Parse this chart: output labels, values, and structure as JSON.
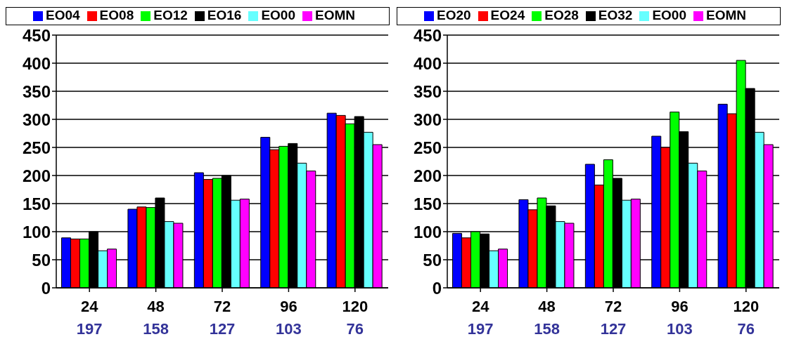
{
  "chart_data": [
    {
      "type": "bar",
      "categories": [
        "24",
        "48",
        "72",
        "96",
        "120"
      ],
      "ylim": [
        0,
        450
      ],
      "yticks": [
        0,
        50,
        100,
        150,
        200,
        250,
        300,
        350,
        400,
        450
      ],
      "grid": "y",
      "legend": "top",
      "series": [
        {
          "name": "EO04",
          "color": "#0000ff",
          "values": [
            89,
            140,
            205,
            268,
            311
          ]
        },
        {
          "name": "EO08",
          "color": "#ff0000",
          "values": [
            87,
            144,
            193,
            246,
            307
          ]
        },
        {
          "name": "EO12",
          "color": "#00ff00",
          "values": [
            87,
            143,
            195,
            252,
            292
          ]
        },
        {
          "name": "EO16",
          "color": "#000000",
          "values": [
            100,
            160,
            200,
            257,
            305
          ]
        },
        {
          "name": "EO00",
          "color": "#66ffff",
          "values": [
            66,
            118,
            156,
            222,
            277
          ]
        },
        {
          "name": "EOMN",
          "color": "#ff00ff",
          "values": [
            69,
            115,
            158,
            208,
            255
          ]
        }
      ],
      "annotations": [
        "197",
        "158",
        "127",
        "103",
        "76"
      ]
    },
    {
      "type": "bar",
      "categories": [
        "24",
        "48",
        "72",
        "96",
        "120"
      ],
      "ylim": [
        0,
        450
      ],
      "yticks": [
        0,
        50,
        100,
        150,
        200,
        250,
        300,
        350,
        400,
        450
      ],
      "grid": "y",
      "legend": "top",
      "series": [
        {
          "name": "EO20",
          "color": "#0000ff",
          "values": [
            97,
            157,
            220,
            270,
            327
          ]
        },
        {
          "name": "EO24",
          "color": "#ff0000",
          "values": [
            89,
            139,
            183,
            250,
            310
          ]
        },
        {
          "name": "EO28",
          "color": "#00ff00",
          "values": [
            100,
            160,
            228,
            313,
            405
          ]
        },
        {
          "name": "EO32",
          "color": "#000000",
          "values": [
            96,
            146,
            195,
            278,
            355
          ]
        },
        {
          "name": "EO00",
          "color": "#66ffff",
          "values": [
            66,
            118,
            156,
            222,
            277
          ]
        },
        {
          "name": "EOMN",
          "color": "#ff00ff",
          "values": [
            69,
            115,
            158,
            208,
            255
          ]
        }
      ],
      "annotations": [
        "197",
        "158",
        "127",
        "103",
        "76"
      ]
    }
  ]
}
